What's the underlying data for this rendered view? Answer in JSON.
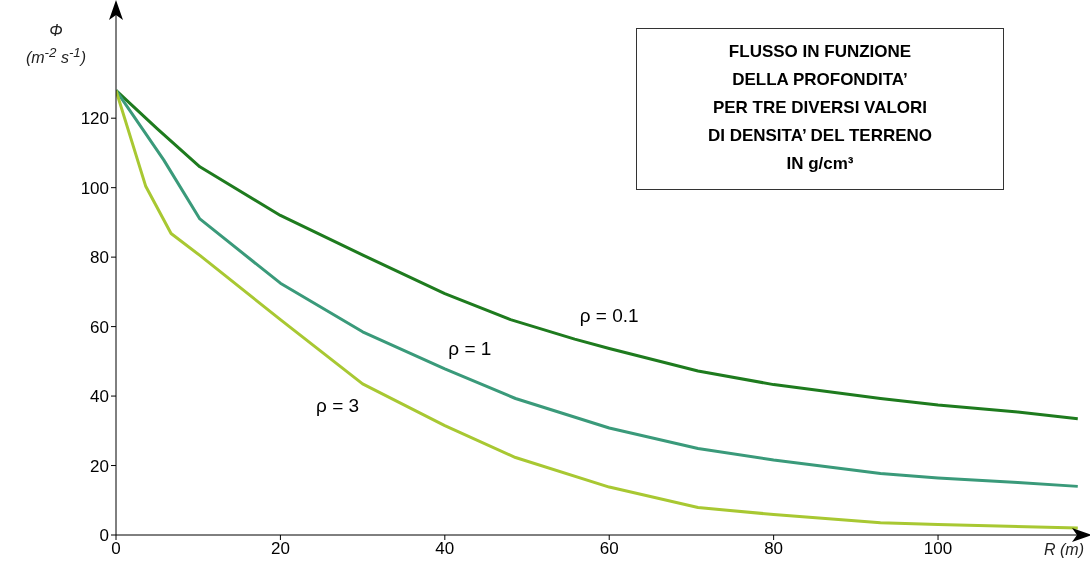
{
  "chart_data": {
    "type": "line",
    "title": "FLUSSO IN FUNZIONE\nDELLA PROFONDITA’\nPER TRE DIVERSI VALORI\nDI DENSITA’ DEL TERRENO\nIN g/cm³",
    "xlabel": "R (m)",
    "ylabel": "Φ\n(m$^{-2}$ s$^{-1}$)",
    "xlim": [
      0,
      118
    ],
    "ylim": [
      0,
      150
    ],
    "xticks": [
      0,
      20,
      40,
      60,
      80,
      100
    ],
    "yticks": [
      0,
      20,
      40,
      60,
      80,
      100,
      120
    ],
    "grid": false,
    "legend": false,
    "marker": "none",
    "line_style": "solid",
    "series": [
      {
        "name": "ρ = 0.1",
        "color": "#1e7b1e",
        "x": [
          0,
          5,
          10.2,
          20,
          30.1,
          40,
          48,
          55.8,
          60,
          70.8,
          80,
          93,
          100,
          109.7,
          117
        ],
        "values": [
          128,
          117,
          106,
          92,
          80.5,
          69.5,
          62,
          56.4,
          53.7,
          47.2,
          43.3,
          39.3,
          37.4,
          35.4,
          33.5
        ]
      },
      {
        "name": "ρ = 1",
        "color": "#3a9a7a",
        "x": [
          0,
          5.8,
          10.2,
          20,
          30,
          40,
          48.6,
          60,
          70.8,
          80,
          93,
          100,
          109.7,
          117
        ],
        "values": [
          128,
          108,
          91,
          72.5,
          58.5,
          47.8,
          39.3,
          30.8,
          24.9,
          21.6,
          17.7,
          16.4,
          15.1,
          14
        ]
      },
      {
        "name": "ρ = 3",
        "color": "#a8c832",
        "x": [
          0,
          3.6,
          6.7,
          10.2,
          20,
          30,
          40,
          48.6,
          60,
          70.8,
          80,
          93,
          100,
          117
        ],
        "values": [
          128,
          100.5,
          86.8,
          80.5,
          62,
          43.5,
          31.5,
          22.3,
          13.8,
          7.9,
          5.9,
          3.5,
          3,
          2
        ]
      }
    ]
  }
}
